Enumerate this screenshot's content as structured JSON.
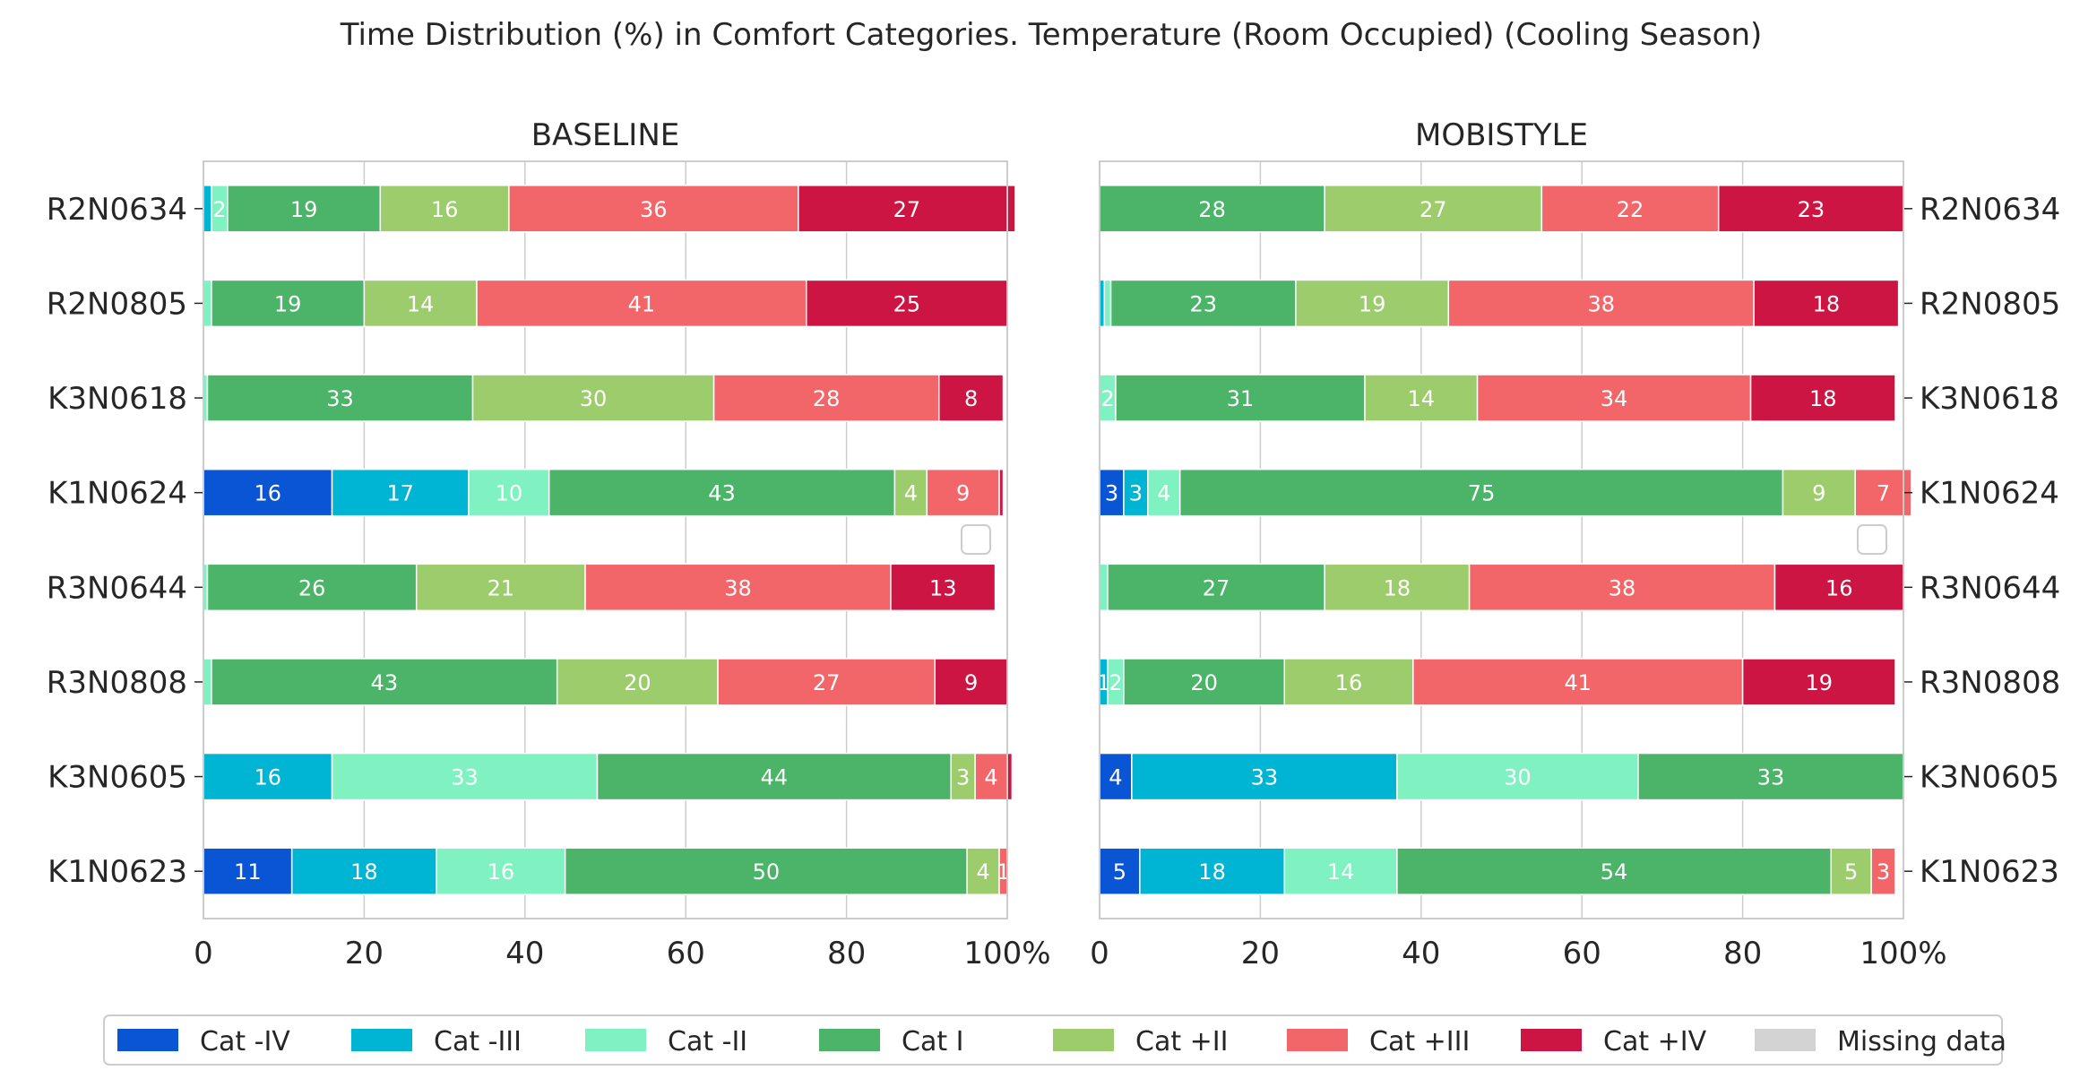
{
  "chart_data": {
    "type": "bar",
    "orientation": "horizontal-stacked",
    "title": "Time Distribution (%) in Comfort Categories. Temperature (Room Occupied) (Cooling Season)",
    "grid": true,
    "legend_position": "bottom",
    "x_ticks": [
      "0",
      "20",
      "40",
      "60",
      "80",
      "100%"
    ],
    "xlim": [
      0,
      100
    ],
    "categories": [
      "R2N0634",
      "R2N0805",
      "K3N0618",
      "K1N0624",
      "R3N0644",
      "R3N0808",
      "K3N0605",
      "K1N0623"
    ],
    "series": [
      {
        "name": "Cat -IV",
        "color": "#0a55d4"
      },
      {
        "name": "Cat -III",
        "color": "#00b4d4"
      },
      {
        "name": "Cat -II",
        "color": "#80f2c2"
      },
      {
        "name": "Cat I",
        "color": "#4cb469"
      },
      {
        "name": "Cat +II",
        "color": "#9ccc6b"
      },
      {
        "name": "Cat +III",
        "color": "#f26669"
      },
      {
        "name": "Cat +IV",
        "color": "#cc1542"
      },
      {
        "name": "Missing data",
        "color": "#d3d3d3"
      }
    ],
    "panels": [
      {
        "title": "BASELINE",
        "values": [
          [
            0,
            1,
            2,
            19,
            16,
            36,
            27,
            0
          ],
          [
            0,
            0,
            1,
            19,
            14,
            41,
            25,
            0
          ],
          [
            0,
            0,
            0.5,
            33,
            30,
            28,
            8,
            0
          ],
          [
            16,
            17,
            10,
            43,
            4,
            9,
            0.5,
            0
          ],
          [
            0,
            0,
            0.5,
            26,
            21,
            38,
            13,
            0
          ],
          [
            0,
            0,
            1,
            43,
            20,
            27,
            9,
            0
          ],
          [
            0,
            16,
            33,
            44,
            3,
            4,
            0.6,
            0
          ],
          [
            11,
            18,
            16,
            50,
            4,
            1,
            0,
            0
          ]
        ],
        "labels": [
          [
            "",
            "",
            "2",
            "19",
            "16",
            "36",
            "27",
            ""
          ],
          [
            "",
            "",
            "",
            "19",
            "14",
            "41",
            "25",
            ""
          ],
          [
            "",
            "",
            "",
            "33",
            "30",
            "28",
            "8",
            ""
          ],
          [
            "16",
            "17",
            "10",
            "43",
            "4",
            "9",
            "",
            ""
          ],
          [
            "",
            "",
            "",
            "26",
            "21",
            "38",
            "13",
            ""
          ],
          [
            "",
            "",
            "",
            "43",
            "20",
            "27",
            "9",
            ""
          ],
          [
            "",
            "16",
            "33",
            "44",
            "3",
            "4",
            "",
            ""
          ],
          [
            "11",
            "18",
            "16",
            "50",
            "4",
            "1",
            "",
            ""
          ]
        ]
      },
      {
        "title": "MOBISTYLE",
        "values": [
          [
            0,
            0,
            0,
            28,
            27,
            22,
            23,
            0
          ],
          [
            0,
            0.6,
            0.8,
            23,
            19,
            38,
            18,
            0
          ],
          [
            0,
            0,
            2,
            31,
            14,
            34,
            18,
            0
          ],
          [
            3,
            3,
            4,
            75,
            9,
            7,
            0,
            0
          ],
          [
            0,
            0,
            1,
            27,
            18,
            38,
            16,
            0
          ],
          [
            0,
            1,
            2,
            20,
            16,
            41,
            19,
            0
          ],
          [
            4,
            33,
            30,
            33,
            0,
            0,
            0,
            0
          ],
          [
            5,
            18,
            14,
            54,
            5,
            3,
            0,
            0
          ]
        ],
        "labels": [
          [
            "",
            "",
            "",
            "28",
            "27",
            "22",
            "23",
            ""
          ],
          [
            "",
            "",
            "",
            "23",
            "19",
            "38",
            "18",
            ""
          ],
          [
            "",
            "",
            "2",
            "31",
            "14",
            "34",
            "18",
            ""
          ],
          [
            "3",
            "3",
            "4",
            "75",
            "9",
            "7",
            "",
            ""
          ],
          [
            "",
            "",
            "",
            "27",
            "18",
            "38",
            "16",
            ""
          ],
          [
            "",
            "1",
            "2",
            "20",
            "16",
            "41",
            "19",
            ""
          ],
          [
            "4",
            "33",
            "30",
            "33",
            "",
            "",
            "",
            ""
          ],
          [
            "5",
            "18",
            "14",
            "54",
            "5",
            "3",
            "",
            ""
          ]
        ]
      }
    ]
  }
}
